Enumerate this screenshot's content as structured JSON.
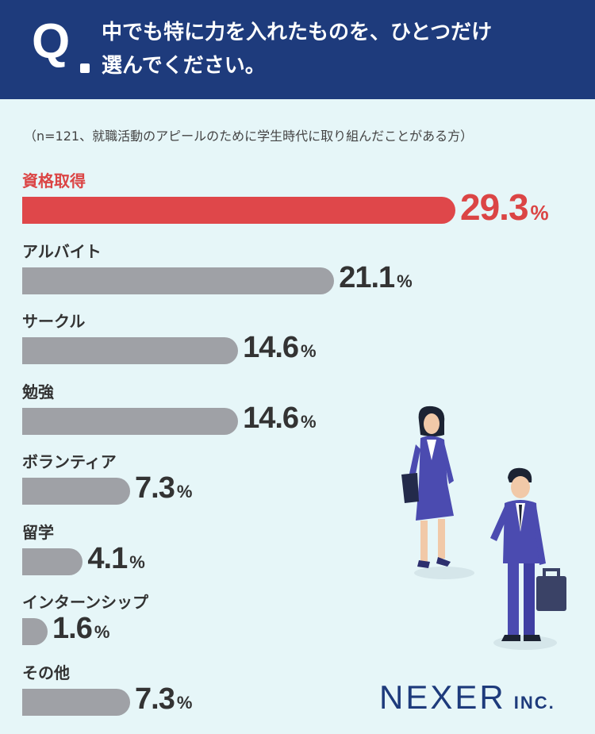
{
  "question": {
    "mark": "Q",
    "line1": "中でも特に力を入れたものを、ひとつだけ",
    "line2": "選んでください。"
  },
  "note": "（n=121、就職活動のアピールのために学生時代に取り組んだことがある方）",
  "brand": {
    "name": "NEXER",
    "suffix": "INC."
  },
  "colors": {
    "header": "#1e3b7c",
    "background": "#e6f6f8",
    "highlight": "#df474a",
    "bar": "#9fa1a6"
  },
  "chart_data": {
    "type": "bar",
    "orientation": "horizontal",
    "unit": "%",
    "categories": [
      "資格取得",
      "アルバイト",
      "サークル",
      "勉強",
      "ボランティア",
      "留学",
      "インターンシップ",
      "その他"
    ],
    "values": [
      29.3,
      21.1,
      14.6,
      14.6,
      7.3,
      4.1,
      1.6,
      7.3
    ],
    "value_labels": [
      "29.3",
      "21.1",
      "14.6",
      "14.6",
      "7.3",
      "4.1",
      "1.6",
      "7.3"
    ],
    "highlight_index": 0
  }
}
